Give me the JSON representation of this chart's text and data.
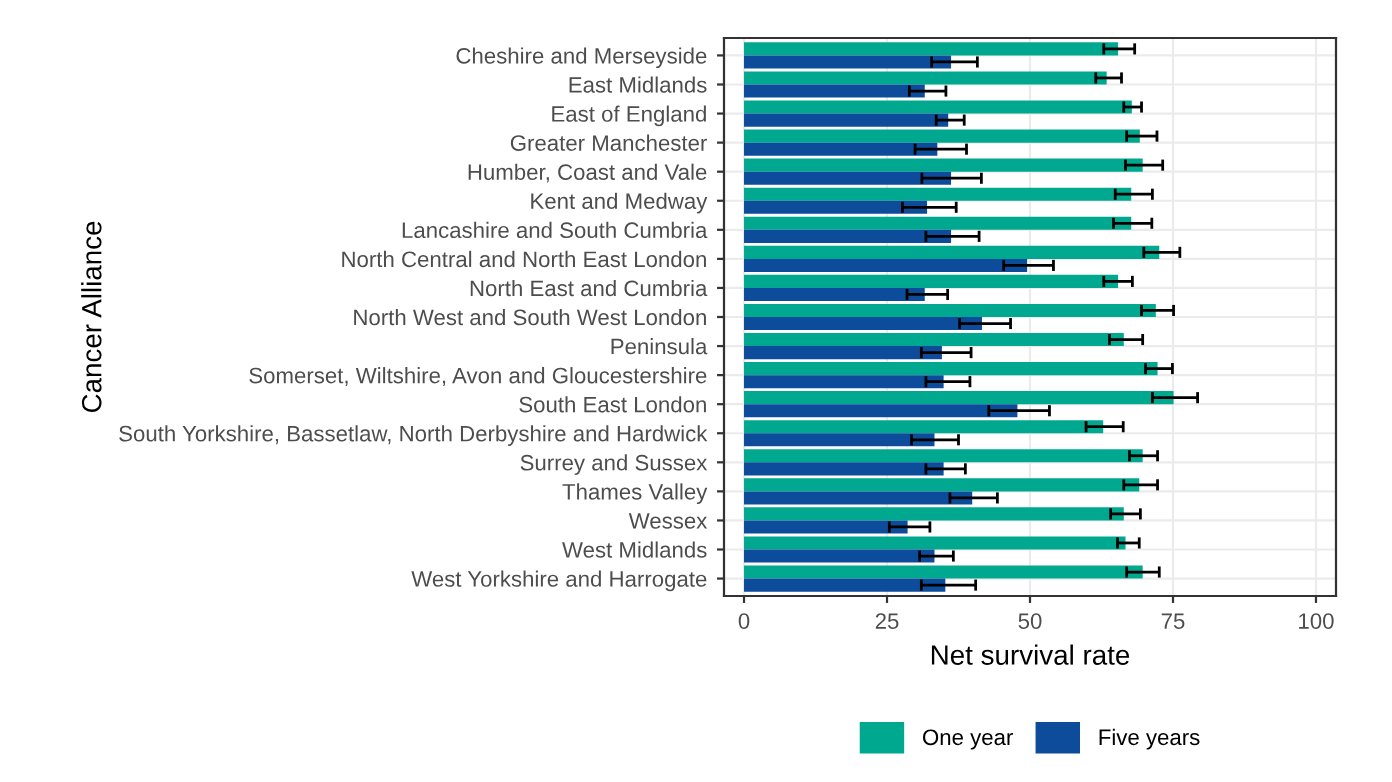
{
  "chart_data": {
    "type": "bar",
    "orientation": "horizontal",
    "xlabel": "Net survival rate",
    "ylabel": "Cancer Alliance",
    "categories": [
      "Cheshire and Merseyside",
      "East Midlands",
      "East of England",
      "Greater Manchester",
      "Humber, Coast and Vale",
      "Kent and Medway",
      "Lancashire and South Cumbria",
      "North Central and North East London",
      "North East and Cumbria",
      "North West and South West London",
      "Peninsula",
      "Somerset, Wiltshire, Avon and Gloucestershire",
      "South East London",
      "South Yorkshire, Bassetlaw, North Derbyshire and Hardwick",
      "Surrey and Sussex",
      "Thames Valley",
      "Wessex",
      "West Midlands",
      "West Yorkshire and Harrogate"
    ],
    "series": [
      {
        "name": "One year",
        "color": "#00a88f",
        "values": [
          65.4,
          63.4,
          67.8,
          69.2,
          69.7,
          67.7,
          67.7,
          72.6,
          65.4,
          72.0,
          66.4,
          72.3,
          75.1,
          62.8,
          69.7,
          69.1,
          66.4,
          66.7,
          69.7
        ],
        "errors": [
          [
            62.9,
            68.3
          ],
          [
            61.5,
            66.0
          ],
          [
            66.4,
            69.5
          ],
          [
            66.9,
            72.2
          ],
          [
            66.7,
            73.2
          ],
          [
            64.9,
            71.4
          ],
          [
            64.6,
            71.3
          ],
          [
            69.9,
            76.2
          ],
          [
            62.9,
            67.9
          ],
          [
            69.5,
            75.1
          ],
          [
            63.9,
            69.7
          ],
          [
            70.2,
            74.9
          ],
          [
            71.4,
            79.3
          ],
          [
            59.8,
            66.3
          ],
          [
            67.4,
            72.3
          ],
          [
            66.4,
            72.3
          ],
          [
            64.1,
            69.3
          ],
          [
            65.3,
            69.1
          ],
          [
            66.9,
            72.6
          ]
        ]
      },
      {
        "name": "Five years",
        "color": "#0d4c9a",
        "values": [
          36.2,
          31.6,
          35.7,
          33.8,
          36.2,
          32.0,
          36.2,
          49.5,
          31.6,
          41.6,
          34.6,
          34.9,
          47.8,
          33.3,
          34.9,
          39.9,
          28.6,
          33.3,
          35.2
        ],
        "errors": [
          [
            32.8,
            40.8
          ],
          [
            28.9,
            35.3
          ],
          [
            33.6,
            38.5
          ],
          [
            29.9,
            38.9
          ],
          [
            31.1,
            41.5
          ],
          [
            27.7,
            37.1
          ],
          [
            31.8,
            41.1
          ],
          [
            45.4,
            54.1
          ],
          [
            28.5,
            35.6
          ],
          [
            37.7,
            46.6
          ],
          [
            31.0,
            39.7
          ],
          [
            31.8,
            39.5
          ],
          [
            42.8,
            53.4
          ],
          [
            29.3,
            37.5
          ],
          [
            31.8,
            38.7
          ],
          [
            36.0,
            44.3
          ],
          [
            25.4,
            32.5
          ],
          [
            30.7,
            36.6
          ],
          [
            31.0,
            40.5
          ]
        ]
      }
    ],
    "xlim": [
      -3.5,
      103.5
    ],
    "xticks": [
      0,
      25,
      50,
      75,
      100
    ],
    "grid": true,
    "legend": "bottom"
  }
}
